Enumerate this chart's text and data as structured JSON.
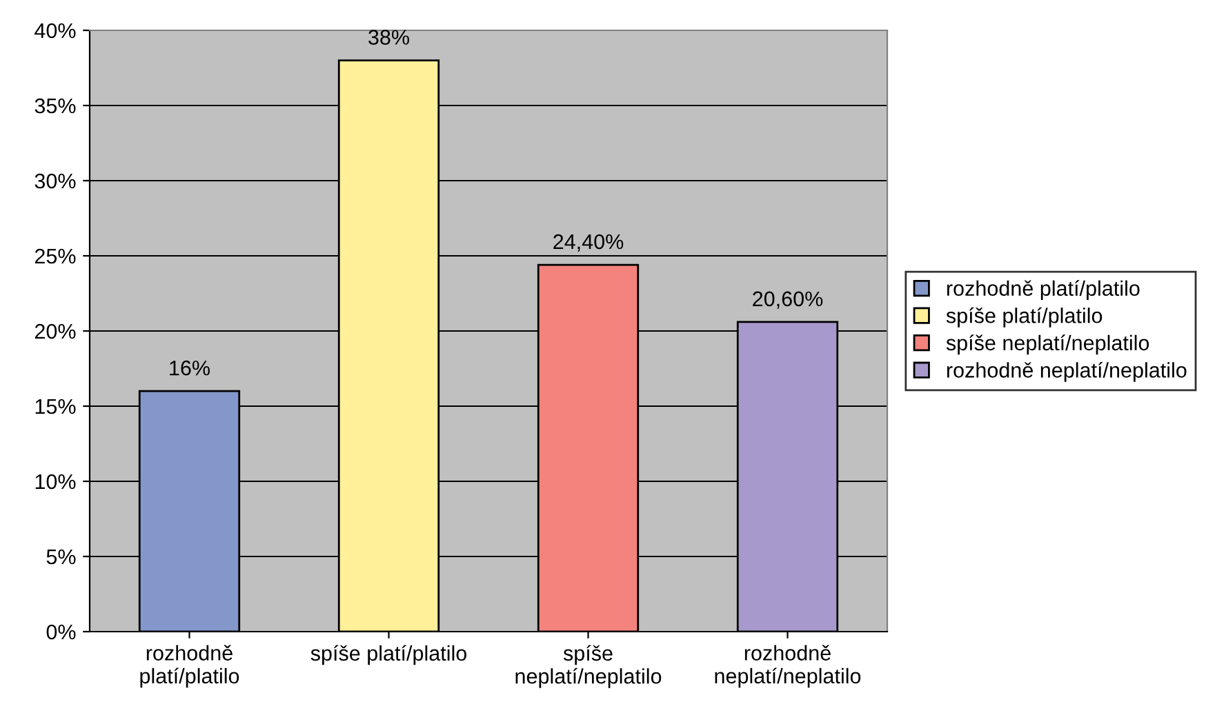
{
  "chart_data": {
    "type": "bar",
    "categories": [
      "rozhodně\nplatí/platilo",
      "spíše platí/platilo",
      "spíše\nneplatí/neplatilo",
      "rozhodně\nneplatí/neplatilo"
    ],
    "stacked": true,
    "series": [
      {
        "name": "rozhodně platí/platilo",
        "color": "#8497cb",
        "values": [
          16,
          null,
          null,
          null
        ],
        "value_labels": [
          "16%",
          null,
          null,
          null
        ]
      },
      {
        "name": "spíše platí/platilo",
        "color": "#fff099",
        "values": [
          null,
          38,
          null,
          null
        ],
        "value_labels": [
          null,
          "38%",
          null,
          null
        ]
      },
      {
        "name": "spíše neplatí/neplatilo",
        "color": "#f4837d",
        "values": [
          null,
          null,
          24.4,
          null
        ],
        "value_labels": [
          null,
          null,
          "24,40%",
          null
        ]
      },
      {
        "name": "rozhodně neplatí/neplatilo",
        "color": "#a899cc",
        "values": [
          null,
          null,
          null,
          20.6
        ],
        "value_labels": [
          null,
          null,
          null,
          "20,60%"
        ]
      }
    ],
    "ylim": [
      0,
      40
    ],
    "yticks": [
      {
        "value": 0,
        "label": "0%"
      },
      {
        "value": 5,
        "label": "5%"
      },
      {
        "value": 10,
        "label": "10%"
      },
      {
        "value": 15,
        "label": "15%"
      },
      {
        "value": 20,
        "label": "20%"
      },
      {
        "value": 25,
        "label": "25%"
      },
      {
        "value": 30,
        "label": "30%"
      },
      {
        "value": 35,
        "label": "35%"
      },
      {
        "value": 40,
        "label": "40%"
      }
    ],
    "grid": "y",
    "legend": "right"
  }
}
